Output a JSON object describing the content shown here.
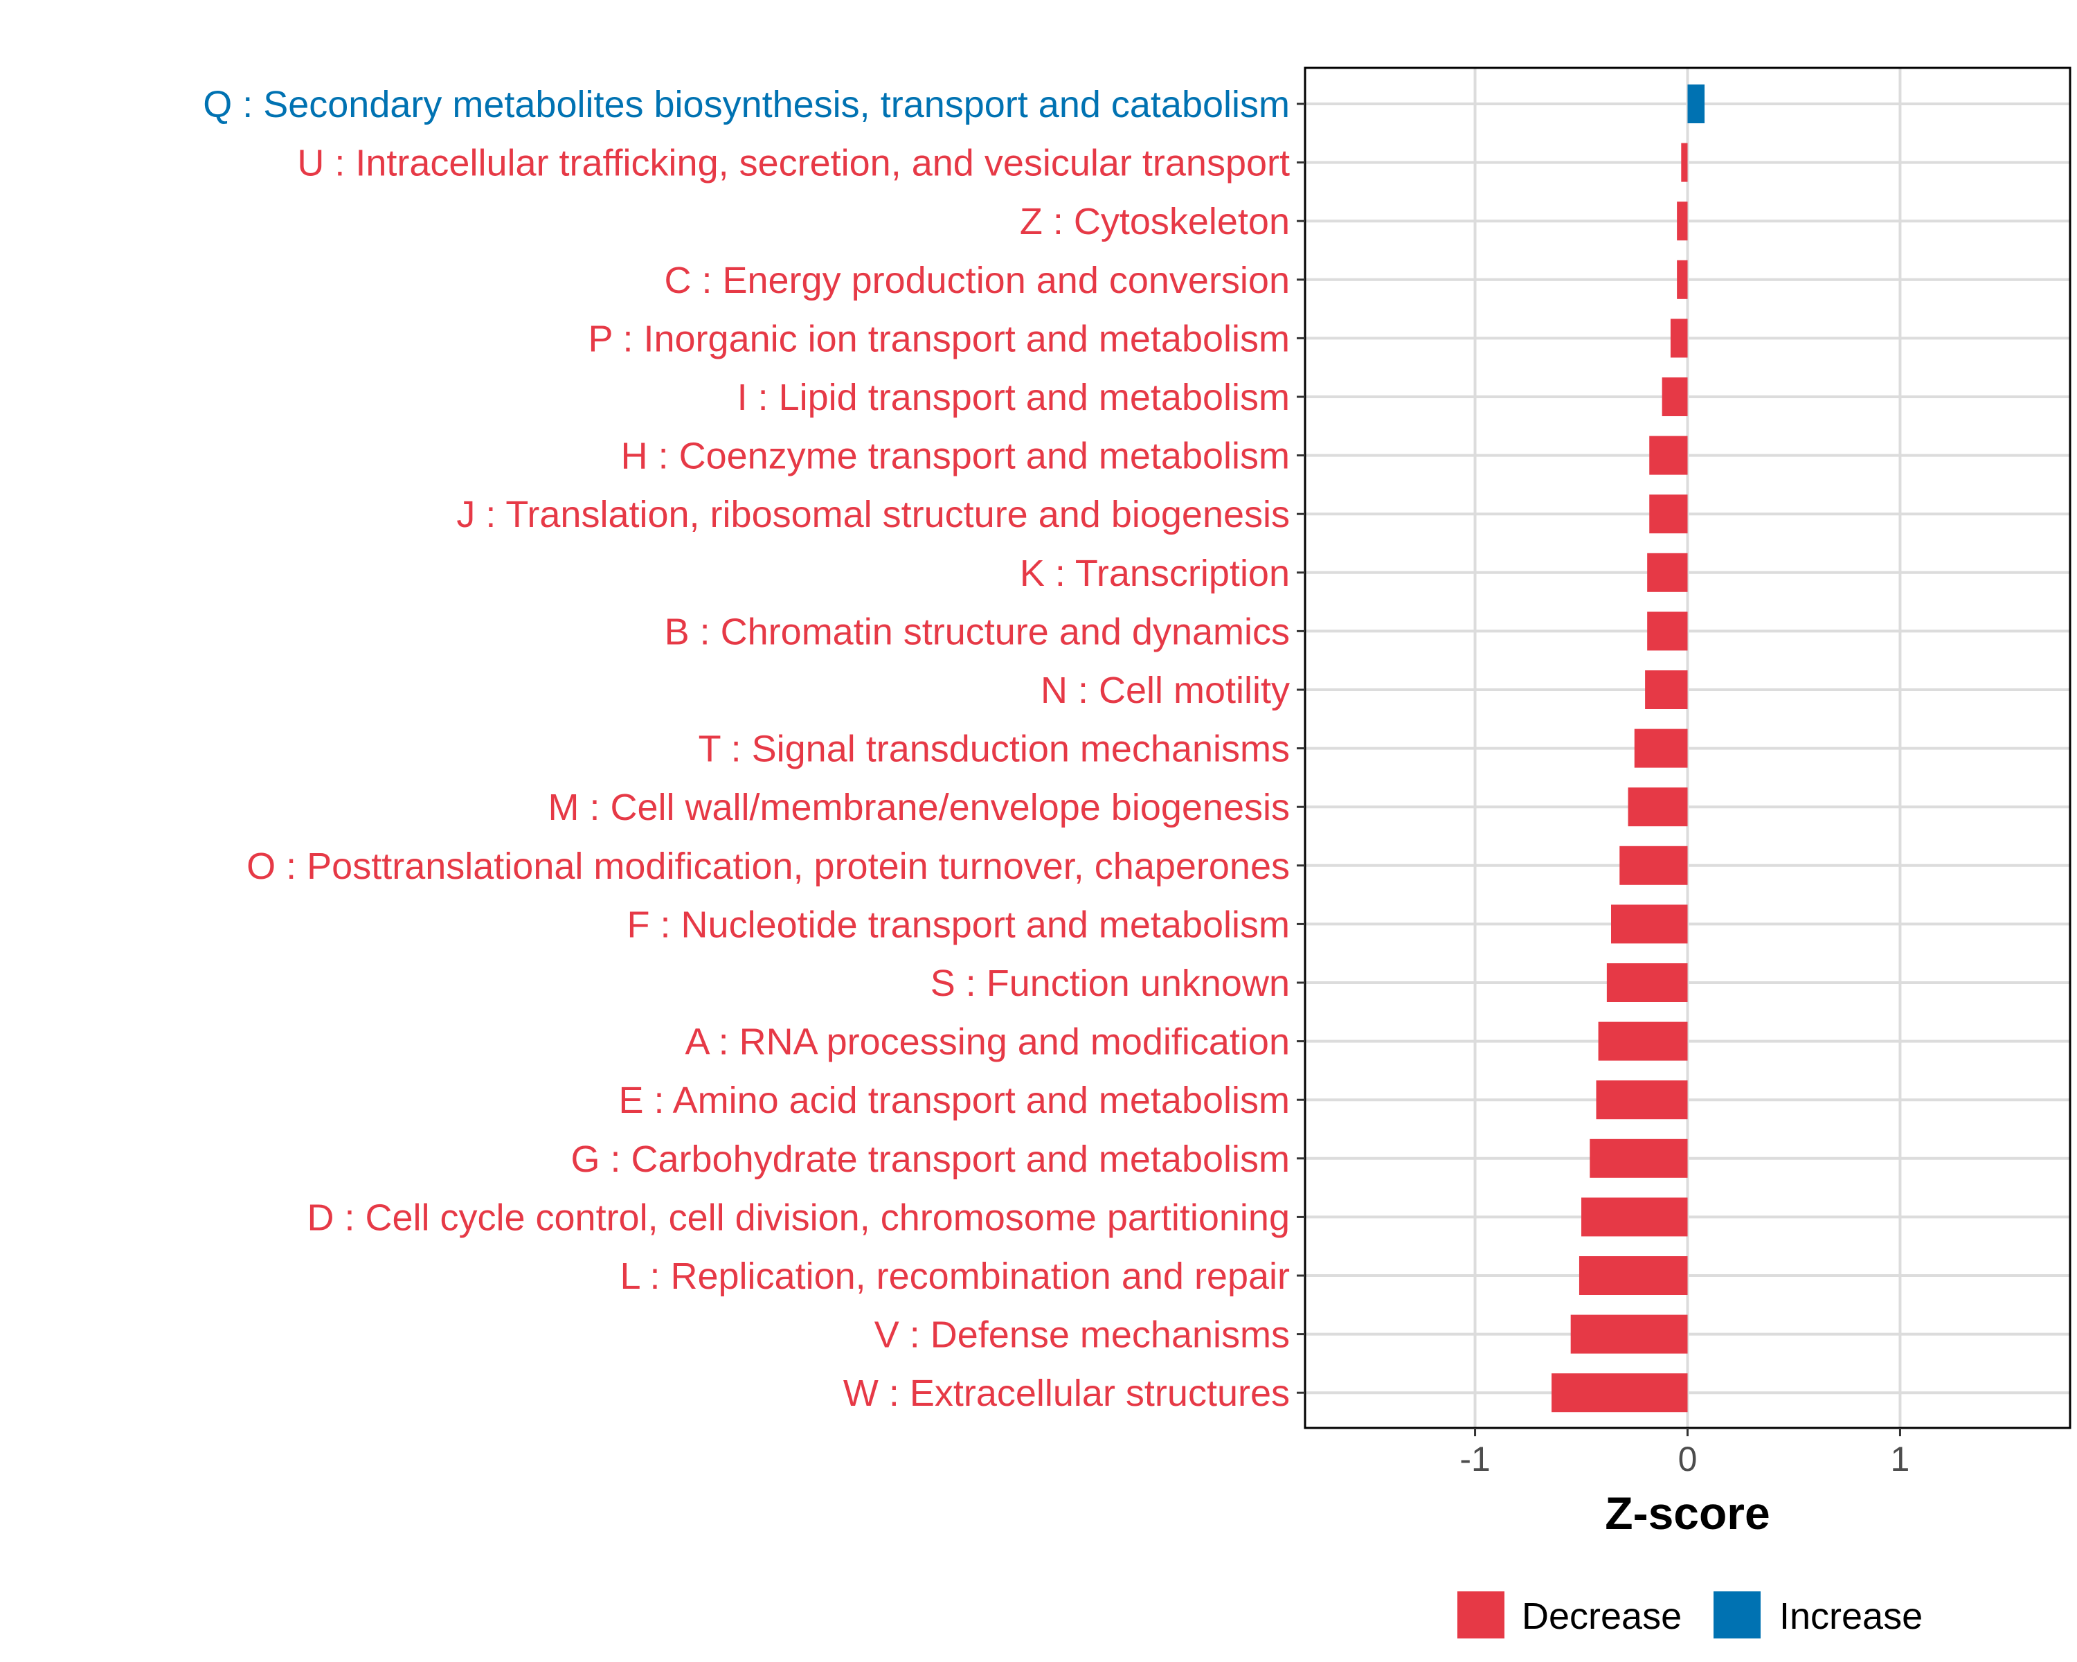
{
  "chart_data": {
    "type": "bar",
    "orientation": "horizontal",
    "title": "",
    "xlabel": "Z-score",
    "ylabel": "",
    "xlim": [
      -1.8,
      1.8
    ],
    "xticks": [
      -1,
      0,
      1
    ],
    "xtick_labels": [
      "-1",
      "0",
      "1"
    ],
    "grid": true,
    "legend_position": "bottom",
    "colors": {
      "Decrease": "#E63946",
      "Increase": "#0072B2"
    },
    "categories": [
      "Q : Secondary metabolites biosynthesis, transport and catabolism",
      "U : Intracellular trafficking, secretion, and vesicular transport",
      "Z : Cytoskeleton",
      "C : Energy production and conversion",
      "P : Inorganic ion transport and metabolism",
      "I : Lipid transport and metabolism",
      "H : Coenzyme transport and metabolism",
      "J : Translation, ribosomal structure and biogenesis",
      "K : Transcription",
      "B : Chromatin structure and dynamics",
      "N : Cell motility",
      "T : Signal transduction mechanisms",
      "M : Cell wall/membrane/envelope biogenesis",
      "O : Posttranslational modification, protein turnover, chaperones",
      "F : Nucleotide transport and metabolism",
      "S : Function unknown",
      "A : RNA processing and modification",
      "E : Amino acid transport and metabolism",
      "G : Carbohydrate transport and metabolism",
      "D : Cell cycle control, cell division, chromosome partitioning",
      "L : Replication, recombination and repair",
      "V : Defense mechanisms",
      "W : Extracellular structures"
    ],
    "values": [
      0.08,
      -0.03,
      -0.05,
      -0.05,
      -0.08,
      -0.12,
      -0.18,
      -0.18,
      -0.19,
      -0.19,
      -0.2,
      -0.25,
      -0.28,
      -0.32,
      -0.36,
      -0.38,
      -0.42,
      -0.43,
      -0.46,
      -0.5,
      -0.51,
      -0.55,
      -0.64
    ],
    "series": [
      {
        "name": "Decrease"
      },
      {
        "name": "Increase"
      }
    ]
  }
}
